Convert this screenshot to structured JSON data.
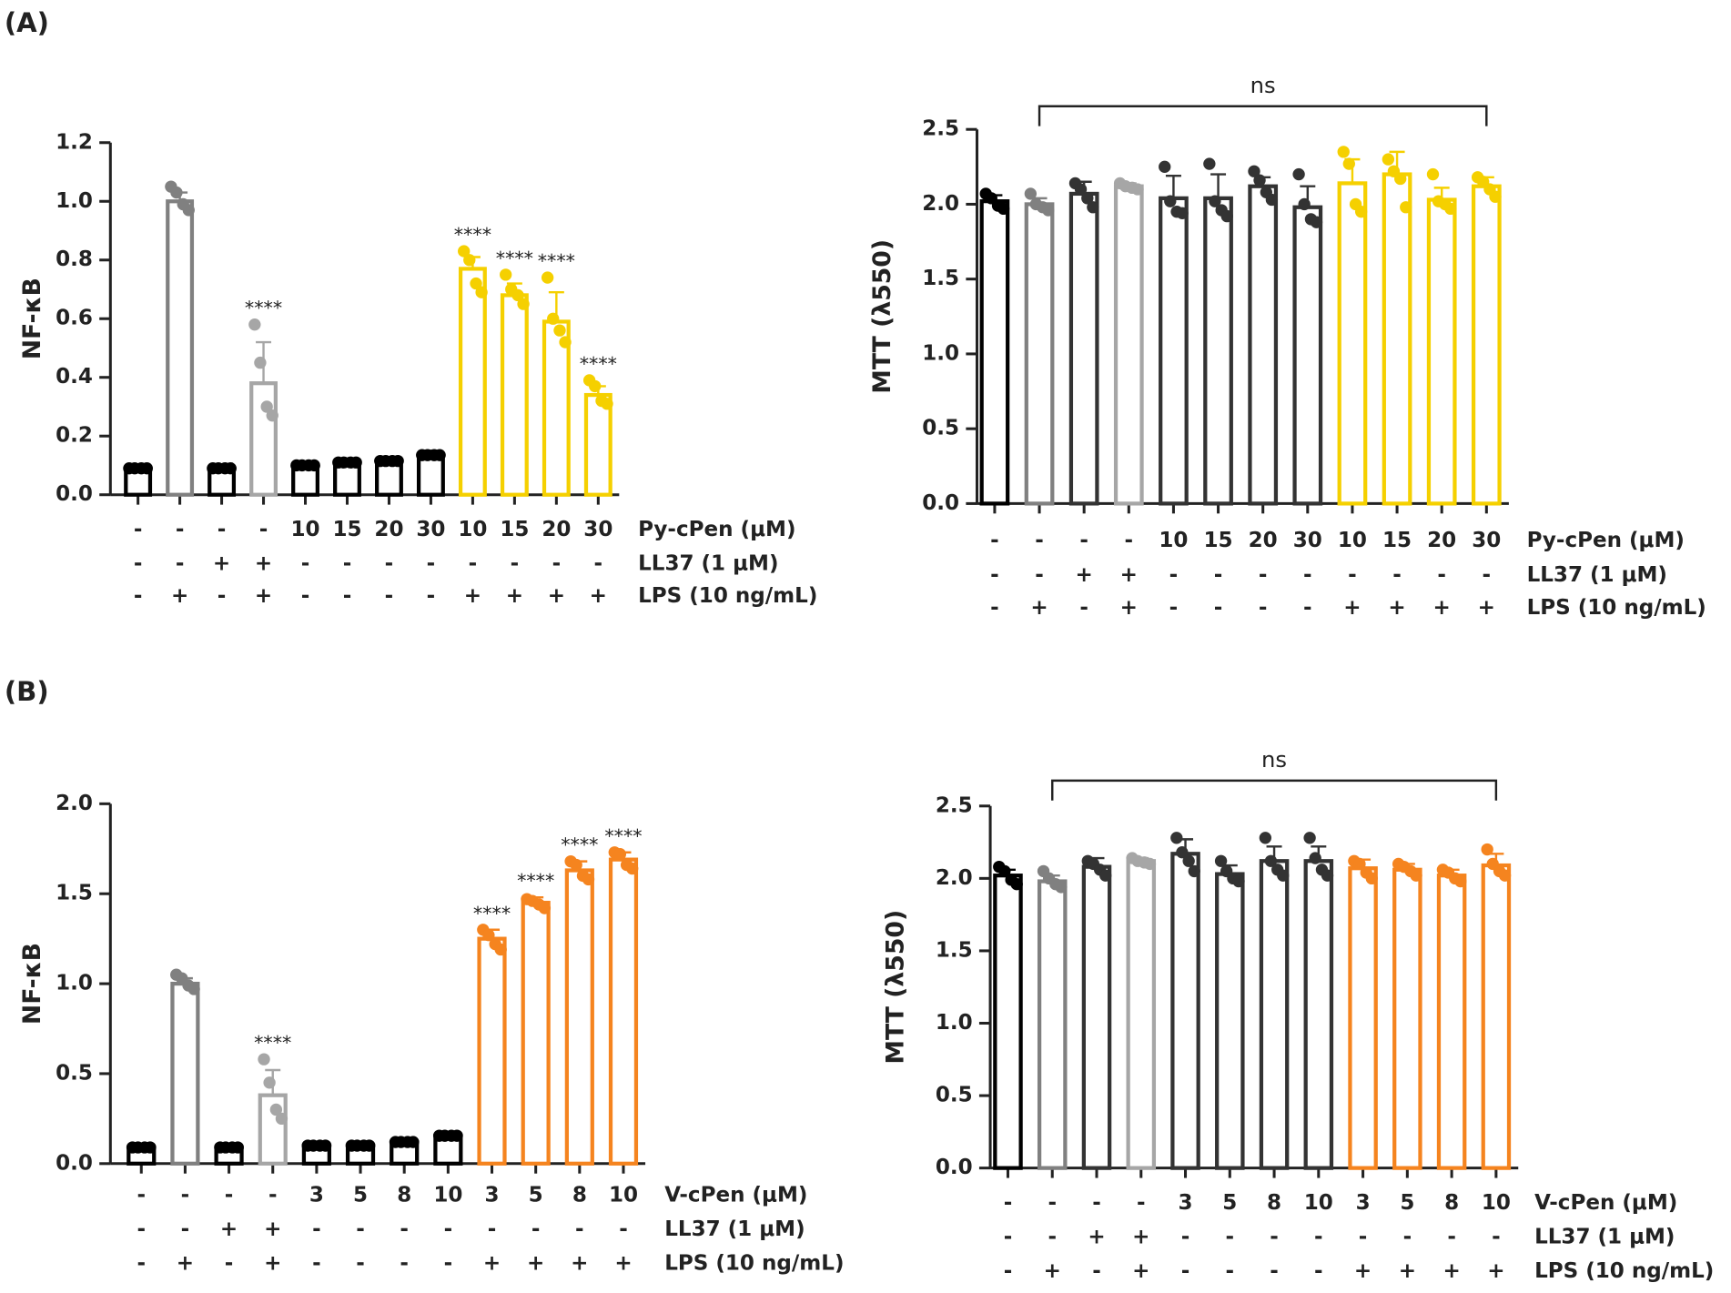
{
  "panel_labels": [
    "(A)",
    "(B)"
  ],
  "chart_data": [
    {
      "type": "bar",
      "y_label": "NF-κB",
      "ylim": [
        0,
        1.2
      ],
      "yticks": [
        {
          "value": 0,
          "label": "0.0"
        },
        0.2,
        0.4,
        0.6,
        0.8,
        {
          "value": 1,
          "label": "1.0"
        },
        1.2
      ],
      "colors": [
        "#000000",
        "#808080",
        "#000000",
        "#a6a6a6",
        "#000000",
        "#000000",
        "#000000",
        "#000000",
        "#f5d000",
        "#f5d000",
        "#f5d000",
        "#f5d000"
      ],
      "values": [
        0.09,
        1.0,
        0.09,
        0.38,
        0.1,
        0.11,
        0.115,
        0.135,
        0.77,
        0.68,
        0.59,
        0.34
      ],
      "errors": [
        0.005,
        0.03,
        0.005,
        0.14,
        0.005,
        0.01,
        0.01,
        0.015,
        0.04,
        0.04,
        0.1,
        0.03
      ],
      "points": [
        [
          0.09,
          0.09,
          0.09,
          0.09
        ],
        [
          1.05,
          1.03,
          0.99,
          0.97
        ],
        [
          0.09,
          0.09,
          0.09,
          0.09
        ],
        [
          0.58,
          0.45,
          0.3,
          0.27
        ],
        [
          0.1,
          0.1,
          0.1,
          0.1
        ],
        [
          0.11,
          0.11,
          0.11,
          0.11
        ],
        [
          0.115,
          0.115,
          0.115,
          0.115
        ],
        [
          0.135,
          0.135,
          0.135,
          0.135
        ],
        [
          0.83,
          0.8,
          0.72,
          0.69
        ],
        [
          0.75,
          0.7,
          0.68,
          0.65
        ],
        [
          0.74,
          0.6,
          0.56,
          0.52
        ],
        [
          0.39,
          0.37,
          0.32,
          0.31
        ]
      ],
      "value_annotations": [
        null,
        null,
        null,
        "****",
        null,
        null,
        null,
        null,
        "****",
        "****",
        "****",
        "****"
      ],
      "conditions": [
        {
          "name": "Py-cPen (μM)",
          "labels": [
            "-",
            "-",
            "-",
            "-",
            "10",
            "15",
            "20",
            "30",
            "10",
            "15",
            "20",
            "30"
          ]
        },
        {
          "name": "LL37 (1 μM)",
          "labels": [
            "-",
            "-",
            "+",
            "+",
            "-",
            "-",
            "-",
            "-",
            "-",
            "-",
            "-",
            "-"
          ]
        },
        {
          "name": "LPS (10 ng/mL)",
          "labels": [
            "-",
            "+",
            "-",
            "+",
            "-",
            "-",
            "-",
            "-",
            "+",
            "+",
            "+",
            "+"
          ]
        }
      ]
    },
    {
      "type": "bar",
      "y_label": "MTT (λ550)",
      "ylim": [
        0,
        2.5
      ],
      "yticks": [
        {
          "value": 0,
          "label": "0.0"
        },
        0.5,
        {
          "value": 1,
          "label": "1.0"
        },
        1.5,
        {
          "value": 2,
          "label": "2.0"
        },
        2.5
      ],
      "colors": [
        "#000000",
        "#808080",
        "#333333",
        "#a6a6a6",
        "#333333",
        "#333333",
        "#333333",
        "#333333",
        "#f5d000",
        "#f5d000",
        "#f5d000",
        "#f5d000"
      ],
      "values": [
        2.02,
        2.0,
        2.07,
        2.12,
        2.04,
        2.04,
        2.12,
        1.98,
        2.14,
        2.2,
        2.03,
        2.12
      ],
      "errors": [
        0.04,
        0.04,
        0.08,
        0.02,
        0.15,
        0.16,
        0.06,
        0.14,
        0.16,
        0.15,
        0.08,
        0.06
      ],
      "points": [
        [
          2.07,
          2.04,
          1.99,
          1.97
        ],
        [
          2.07,
          2.0,
          1.98,
          1.96
        ],
        [
          2.14,
          2.1,
          2.04,
          1.98
        ],
        [
          2.14,
          2.12,
          2.11,
          2.1
        ],
        [
          2.25,
          2.02,
          1.95,
          1.94
        ],
        [
          2.27,
          2.02,
          1.96,
          1.92
        ],
        [
          2.22,
          2.16,
          2.08,
          2.03
        ],
        [
          2.2,
          2.0,
          1.9,
          1.88
        ],
        [
          2.35,
          2.27,
          2.0,
          1.95
        ],
        [
          2.3,
          2.22,
          2.17,
          1.98
        ],
        [
          2.2,
          2.02,
          2.0,
          1.97
        ],
        [
          2.18,
          2.15,
          2.1,
          2.05
        ]
      ],
      "value_annotations": [
        null,
        null,
        null,
        null,
        null,
        null,
        null,
        null,
        null,
        null,
        null,
        null
      ],
      "bracket_label": "ns",
      "conditions": [
        {
          "name": "Py-cPen (μM)",
          "labels": [
            "-",
            "-",
            "-",
            "-",
            "10",
            "15",
            "20",
            "30",
            "10",
            "15",
            "20",
            "30"
          ]
        },
        {
          "name": "LL37 (1 μM)",
          "labels": [
            "-",
            "-",
            "+",
            "+",
            "-",
            "-",
            "-",
            "-",
            "-",
            "-",
            "-",
            "-"
          ]
        },
        {
          "name": "LPS (10 ng/mL)",
          "labels": [
            "-",
            "+",
            "-",
            "+",
            "-",
            "-",
            "-",
            "-",
            "+",
            "+",
            "+",
            "+"
          ]
        }
      ]
    },
    {
      "type": "bar",
      "y_label": "NF-κB",
      "ylim": [
        0,
        2
      ],
      "yticks": [
        {
          "value": 0,
          "label": "0.0"
        },
        0.5,
        {
          "value": 1,
          "label": "1.0"
        },
        1.5,
        {
          "value": 2,
          "label": "2.0"
        }
      ],
      "colors": [
        "#000000",
        "#808080",
        "#000000",
        "#a6a6a6",
        "#000000",
        "#000000",
        "#000000",
        "#000000",
        "#f5841f",
        "#f5841f",
        "#f5841f",
        "#f5841f"
      ],
      "values": [
        0.09,
        1.0,
        0.09,
        0.38,
        0.1,
        0.1,
        0.12,
        0.155,
        1.25,
        1.45,
        1.63,
        1.69
      ],
      "errors": [
        0.005,
        0.03,
        0.005,
        0.14,
        0.01,
        0.01,
        0.01,
        0.02,
        0.05,
        0.03,
        0.05,
        0.04
      ],
      "points": [
        [
          0.09,
          0.09,
          0.09,
          0.09
        ],
        [
          1.05,
          1.03,
          0.99,
          0.97
        ],
        [
          0.09,
          0.09,
          0.09,
          0.09
        ],
        [
          0.58,
          0.45,
          0.3,
          0.25
        ],
        [
          0.1,
          0.1,
          0.1,
          0.1
        ],
        [
          0.1,
          0.1,
          0.1,
          0.1
        ],
        [
          0.12,
          0.12,
          0.12,
          0.12
        ],
        [
          0.155,
          0.155,
          0.155,
          0.155
        ],
        [
          1.3,
          1.27,
          1.22,
          1.19
        ],
        [
          1.47,
          1.46,
          1.44,
          1.42
        ],
        [
          1.68,
          1.66,
          1.6,
          1.58
        ],
        [
          1.73,
          1.72,
          1.66,
          1.64
        ]
      ],
      "value_annotations": [
        null,
        null,
        null,
        "****",
        null,
        null,
        null,
        null,
        "****",
        "****",
        "****",
        "****"
      ],
      "conditions": [
        {
          "name": "V-cPen (μM)",
          "labels": [
            "-",
            "-",
            "-",
            "-",
            "3",
            "5",
            "8",
            "10",
            "3",
            "5",
            "8",
            "10"
          ]
        },
        {
          "name": "LL37 (1 μM)",
          "labels": [
            "-",
            "-",
            "+",
            "+",
            "-",
            "-",
            "-",
            "-",
            "-",
            "-",
            "-",
            "-"
          ]
        },
        {
          "name": "LPS (10 ng/mL)",
          "labels": [
            "-",
            "+",
            "-",
            "+",
            "-",
            "-",
            "-",
            "-",
            "+",
            "+",
            "+",
            "+"
          ]
        }
      ]
    },
    {
      "type": "bar",
      "y_label": "MTT (λ550)",
      "ylim": [
        0,
        2.5
      ],
      "yticks": [
        {
          "value": 0,
          "label": "0.0"
        },
        0.5,
        {
          "value": 1,
          "label": "1.0"
        },
        1.5,
        {
          "value": 2,
          "label": "2.0"
        },
        2.5
      ],
      "colors": [
        "#000000",
        "#808080",
        "#333333",
        "#a6a6a6",
        "#333333",
        "#333333",
        "#333333",
        "#333333",
        "#f5841f",
        "#f5841f",
        "#f5841f",
        "#f5841f"
      ],
      "values": [
        2.02,
        1.98,
        2.08,
        2.12,
        2.17,
        2.03,
        2.12,
        2.12,
        2.07,
        2.06,
        2.02,
        2.09
      ],
      "errors": [
        0.04,
        0.04,
        0.06,
        0.02,
        0.1,
        0.06,
        0.1,
        0.1,
        0.06,
        0.04,
        0.04,
        0.08
      ],
      "points": [
        [
          2.08,
          2.05,
          1.99,
          1.96
        ],
        [
          2.05,
          2.0,
          1.96,
          1.94
        ],
        [
          2.12,
          2.1,
          2.06,
          2.02
        ],
        [
          2.14,
          2.12,
          2.11,
          2.1
        ],
        [
          2.28,
          2.18,
          2.12,
          2.05
        ],
        [
          2.12,
          2.05,
          2.0,
          1.98
        ],
        [
          2.28,
          2.12,
          2.06,
          2.02
        ],
        [
          2.28,
          2.14,
          2.06,
          2.02
        ],
        [
          2.12,
          2.1,
          2.04,
          2.0
        ],
        [
          2.1,
          2.08,
          2.05,
          2.02
        ],
        [
          2.06,
          2.04,
          2.0,
          1.98
        ],
        [
          2.2,
          2.1,
          2.05,
          2.02
        ]
      ],
      "value_annotations": [
        null,
        null,
        null,
        null,
        null,
        null,
        null,
        null,
        null,
        null,
        null,
        null
      ],
      "bracket_label": "ns",
      "conditions": [
        {
          "name": "V-cPen (μM)",
          "labels": [
            "-",
            "-",
            "-",
            "-",
            "3",
            "5",
            "8",
            "10",
            "3",
            "5",
            "8",
            "10"
          ]
        },
        {
          "name": "LL37 (1 μM)",
          "labels": [
            "-",
            "-",
            "+",
            "+",
            "-",
            "-",
            "-",
            "-",
            "-",
            "-",
            "-",
            "-"
          ]
        },
        {
          "name": "LPS (10 ng/mL)",
          "labels": [
            "-",
            "+",
            "-",
            "+",
            "-",
            "-",
            "-",
            "-",
            "+",
            "+",
            "+",
            "+"
          ]
        }
      ]
    }
  ]
}
